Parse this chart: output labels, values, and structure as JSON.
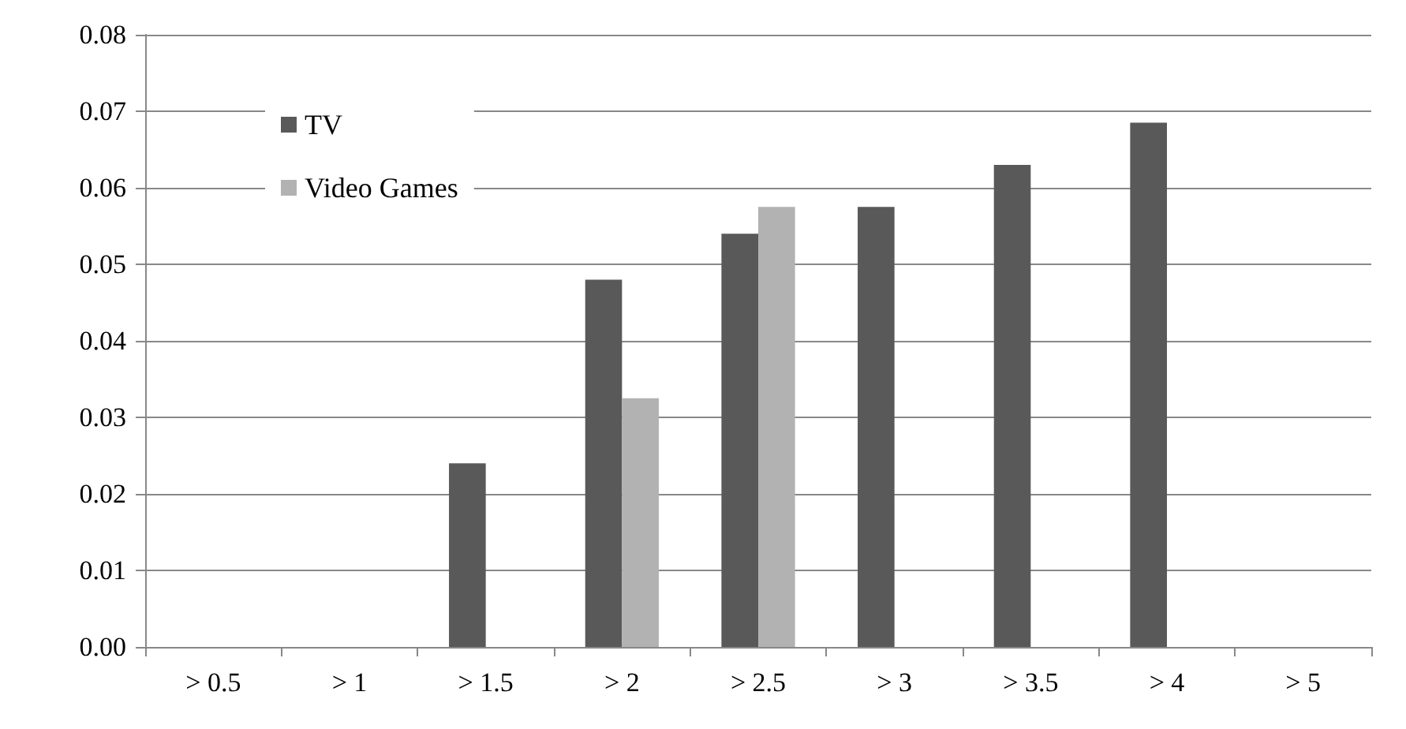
{
  "chart_data": {
    "type": "bar",
    "categories": [
      "> 0.5",
      "> 1",
      "> 1.5",
      "> 2",
      "> 2.5",
      "> 3",
      "> 3.5",
      "> 4",
      "> 5"
    ],
    "series": [
      {
        "name": "TV",
        "color": "#595959",
        "values": [
          null,
          null,
          0.024,
          0.048,
          0.054,
          0.0575,
          0.063,
          0.0685,
          null
        ]
      },
      {
        "name": "Video Games",
        "color": "#b2b2b2",
        "values": [
          null,
          null,
          null,
          0.0325,
          0.0575,
          null,
          null,
          null,
          null
        ]
      }
    ],
    "ylim": [
      0,
      0.08
    ],
    "yticks": [
      {
        "value": 0,
        "label": "0.00"
      },
      0.01,
      0.02,
      0.03,
      0.04,
      0.05,
      0.06,
      0.07,
      0.08
    ],
    "grid": "y",
    "legend": "top left"
  }
}
